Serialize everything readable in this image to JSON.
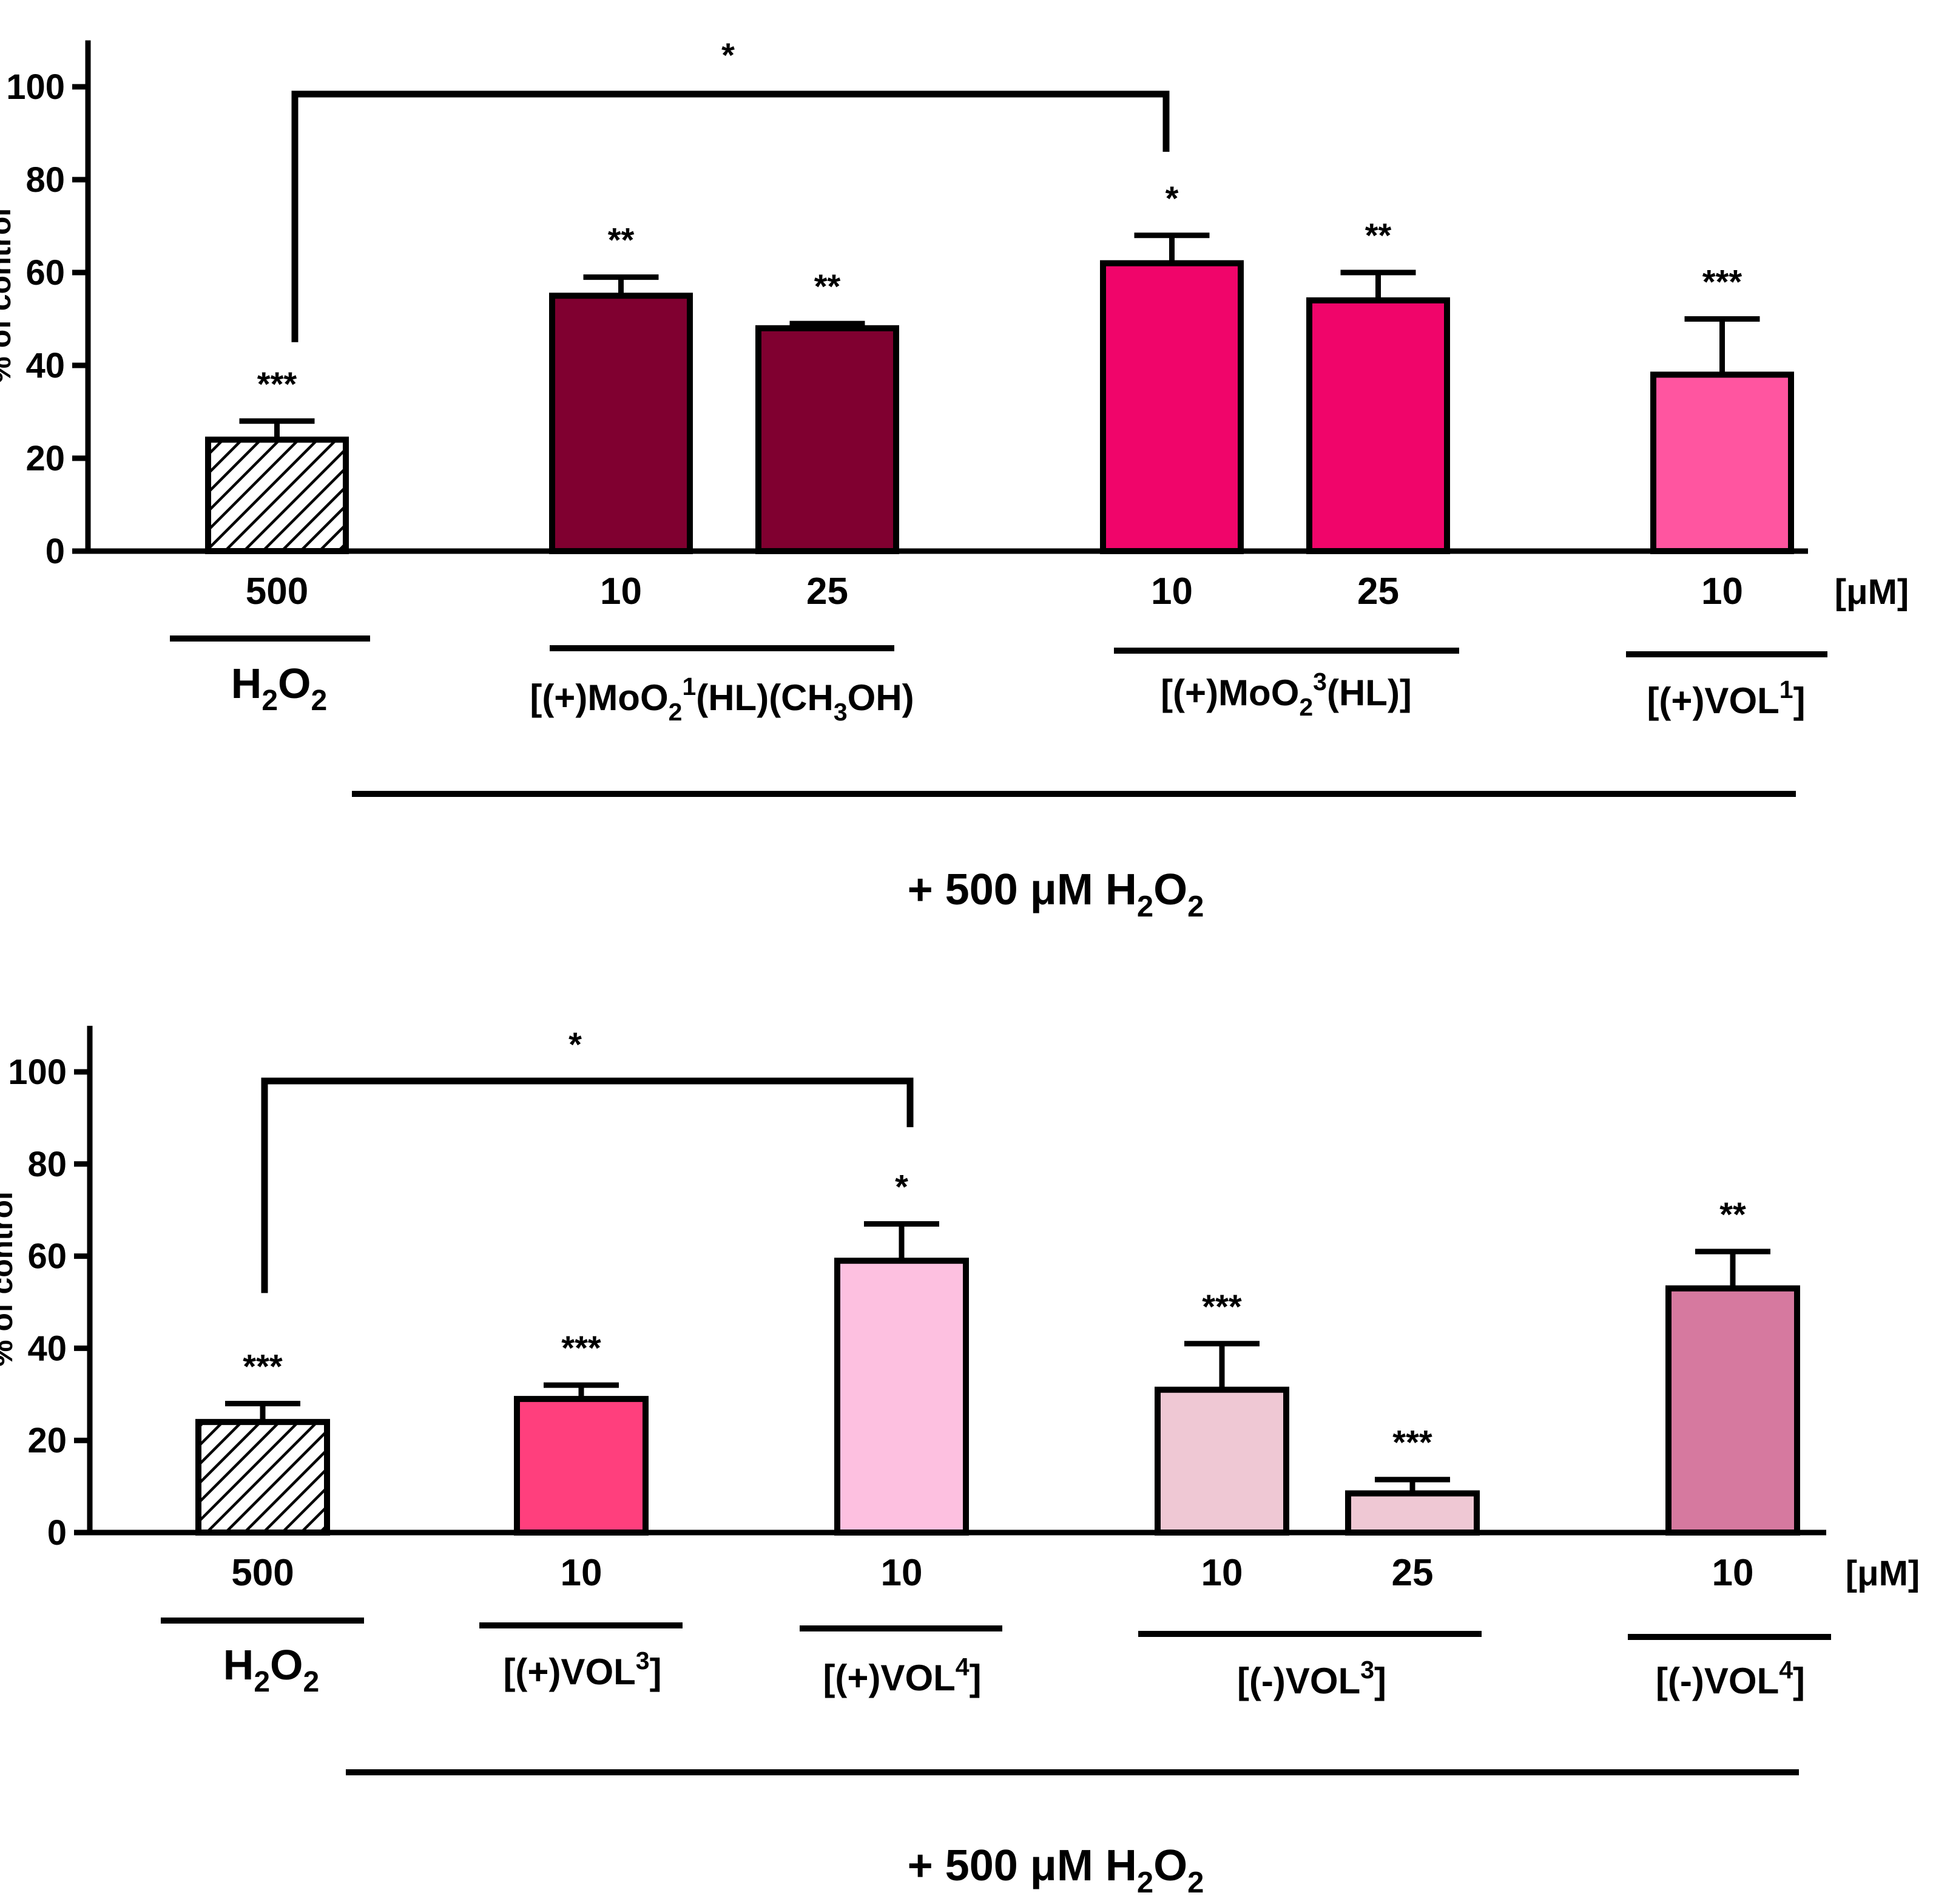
{
  "chart_data": [
    {
      "type": "bar",
      "ylabel": "% of control",
      "ylim": [
        0,
        110
      ],
      "yticks": [
        0,
        20,
        40,
        60,
        80,
        100
      ],
      "unit_label": "[μM]",
      "bars": [
        {
          "value": 24,
          "error": 4,
          "color": "#ffffff",
          "hatched": true,
          "sig": "***",
          "conc": "500"
        },
        {
          "value": 55,
          "error": 4,
          "color": "#800030",
          "hatched": false,
          "sig": "**",
          "conc": "10"
        },
        {
          "value": 48,
          "error": 1,
          "color": "#800030",
          "hatched": false,
          "sig": "**",
          "conc": "25"
        },
        {
          "value": 62,
          "error": 6,
          "color": "#f0056a",
          "hatched": false,
          "sig": "*",
          "conc": "10"
        },
        {
          "value": 54,
          "error": 6,
          "color": "#f0056a",
          "hatched": false,
          "sig": "**",
          "conc": "25"
        },
        {
          "value": 38,
          "error": 12,
          "color": "#ff55a0",
          "hatched": false,
          "sig": "***",
          "conc": "10"
        }
      ],
      "groups": [
        {
          "main": "H",
          "sub1": "2",
          "mid": "O",
          "sub2": "2",
          "rest": ""
        },
        {
          "main": "[(+)MoO",
          "sub1": "2",
          "mid": "(HL",
          "sup1": "1",
          "mid2": ")(CH",
          "sub2": "3",
          "rest": "OH)"
        },
        {
          "main": "[(+)MoO",
          "sub1": "2",
          "mid": "(HL",
          "sup1": "3",
          "rest": ")]"
        },
        {
          "main": "[(+)VOL",
          "sup1": "1",
          "rest": "]"
        }
      ],
      "bracket_sig": "*",
      "footer": {
        "prefix": "+ 500 μM H",
        "sub1": "2",
        "mid": "O",
        "sub2": "2"
      }
    },
    {
      "type": "bar",
      "ylabel": "% of control",
      "ylim": [
        0,
        110
      ],
      "yticks": [
        0,
        20,
        40,
        60,
        80,
        100
      ],
      "unit_label": "[μM]",
      "bars": [
        {
          "value": 24,
          "error": 4,
          "color": "#ffffff",
          "hatched": true,
          "sig": "***",
          "conc": "500"
        },
        {
          "value": 29,
          "error": 3,
          "color": "#ff3f7d",
          "hatched": false,
          "sig": "***",
          "conc": "10"
        },
        {
          "value": 59,
          "error": 8,
          "color": "#fdc0e0",
          "hatched": false,
          "sig": "*",
          "conc": "10"
        },
        {
          "value": 31,
          "error": 10,
          "color": "#efc8d4",
          "hatched": false,
          "sig": "***",
          "conc": "10"
        },
        {
          "value": 8.5,
          "error": 3,
          "color": "#efc8d4",
          "hatched": false,
          "sig": "***",
          "conc": "25"
        },
        {
          "value": 53,
          "error": 8,
          "color": "#d6799f",
          "hatched": false,
          "sig": "**",
          "conc": "10"
        }
      ],
      "groups": [
        {
          "main": "H",
          "sub1": "2",
          "mid": "O",
          "sub2": "2",
          "rest": ""
        },
        {
          "main": "[(+)VOL",
          "sup1": "3",
          "rest": "]"
        },
        {
          "main": "[(+)VOL",
          "sup1": "4",
          "rest": "]"
        },
        {
          "main": "[(-)VOL",
          "sup1": "3",
          "rest": "]"
        },
        {
          "main": "[(-)VOL",
          "sup1": "4",
          "rest": "]"
        }
      ],
      "bracket_sig": "*",
      "footer": {
        "prefix": "+ 500 μM H",
        "sub1": "2",
        "mid": "O",
        "sub2": "2"
      }
    }
  ]
}
